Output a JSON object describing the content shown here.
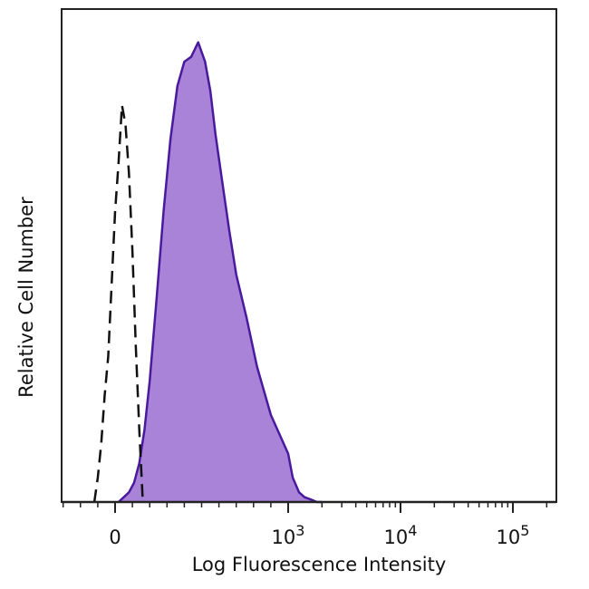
{
  "chart_data": {
    "type": "area",
    "title": "",
    "xlabel": "Log Fluorescence Intensity",
    "ylabel": "Relative Cell Number",
    "x_scale": "biexponential",
    "xlim": [
      -300,
      200000
    ],
    "ylim": [
      0,
      100
    ],
    "grid": false,
    "legend": "none",
    "x_ticks": [
      {
        "value": 0,
        "label": "0",
        "base": "0",
        "exp": ""
      },
      {
        "value": 1000,
        "label": "10^3",
        "base": "10",
        "exp": "3"
      },
      {
        "value": 10000,
        "label": "10^4",
        "base": "10",
        "exp": "4"
      },
      {
        "value": 100000,
        "label": "10^5",
        "base": "10",
        "exp": "5"
      }
    ],
    "series": [
      {
        "style": "filled",
        "color": "#a883d8",
        "line_color": "#4a1a9e",
        "x": [
          20,
          50,
          80,
          110,
          140,
          170,
          200,
          240,
          280,
          320,
          360,
          400,
          440,
          480,
          520,
          550,
          580,
          620,
          660,
          700,
          760,
          820,
          900,
          1000,
          1100,
          1250,
          1400,
          1600,
          1800,
          2000
        ],
        "y": [
          0,
          1,
          2,
          4,
          8,
          15,
          25,
          42,
          60,
          75,
          86,
          91,
          92,
          95,
          91,
          85,
          76,
          66,
          56,
          47,
          38,
          28,
          18,
          10,
          5,
          2,
          1,
          0.5,
          0,
          0
        ]
      },
      {
        "style": "dashed",
        "color": "#111111",
        "x": [
          -120,
          -100,
          -80,
          -60,
          -40,
          -20,
          0,
          20,
          40,
          60,
          80,
          100,
          120,
          140,
          160
        ],
        "y": [
          0,
          5,
          12,
          22,
          30,
          45,
          60,
          70,
          82,
          78,
          68,
          52,
          32,
          15,
          0
        ]
      }
    ]
  }
}
